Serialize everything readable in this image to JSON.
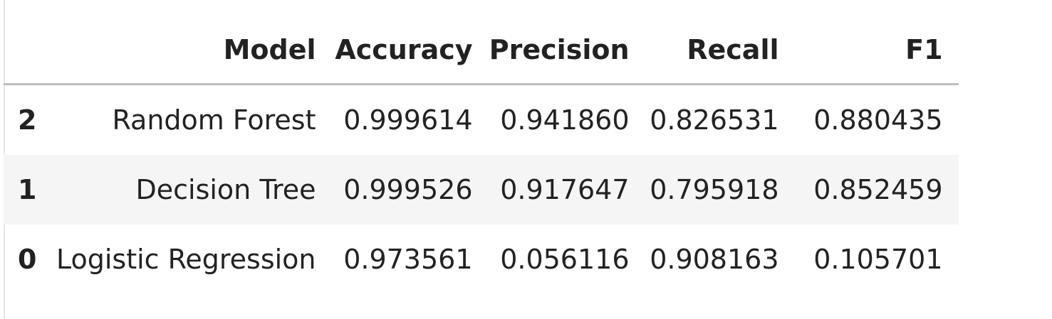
{
  "table": {
    "headers": [
      "",
      "Model",
      "Accuracy",
      "Precision",
      "Recall",
      "F1"
    ],
    "rows": [
      {
        "index": "2",
        "model": "Random Forest",
        "accuracy": "0.999614",
        "precision": "0.941860",
        "recall": "0.826531",
        "f1": "0.880435"
      },
      {
        "index": "1",
        "model": "Decision Tree",
        "accuracy": "0.999526",
        "precision": "0.917647",
        "recall": "0.795918",
        "f1": "0.852459"
      },
      {
        "index": "0",
        "model": "Logistic Regression",
        "accuracy": "0.973561",
        "precision": "0.056116",
        "recall": "0.908163",
        "f1": "0.105701"
      }
    ]
  },
  "colors": {
    "text": "#222222",
    "stripe": "#f5f5f5",
    "header_rule": "#bdbdbd"
  }
}
